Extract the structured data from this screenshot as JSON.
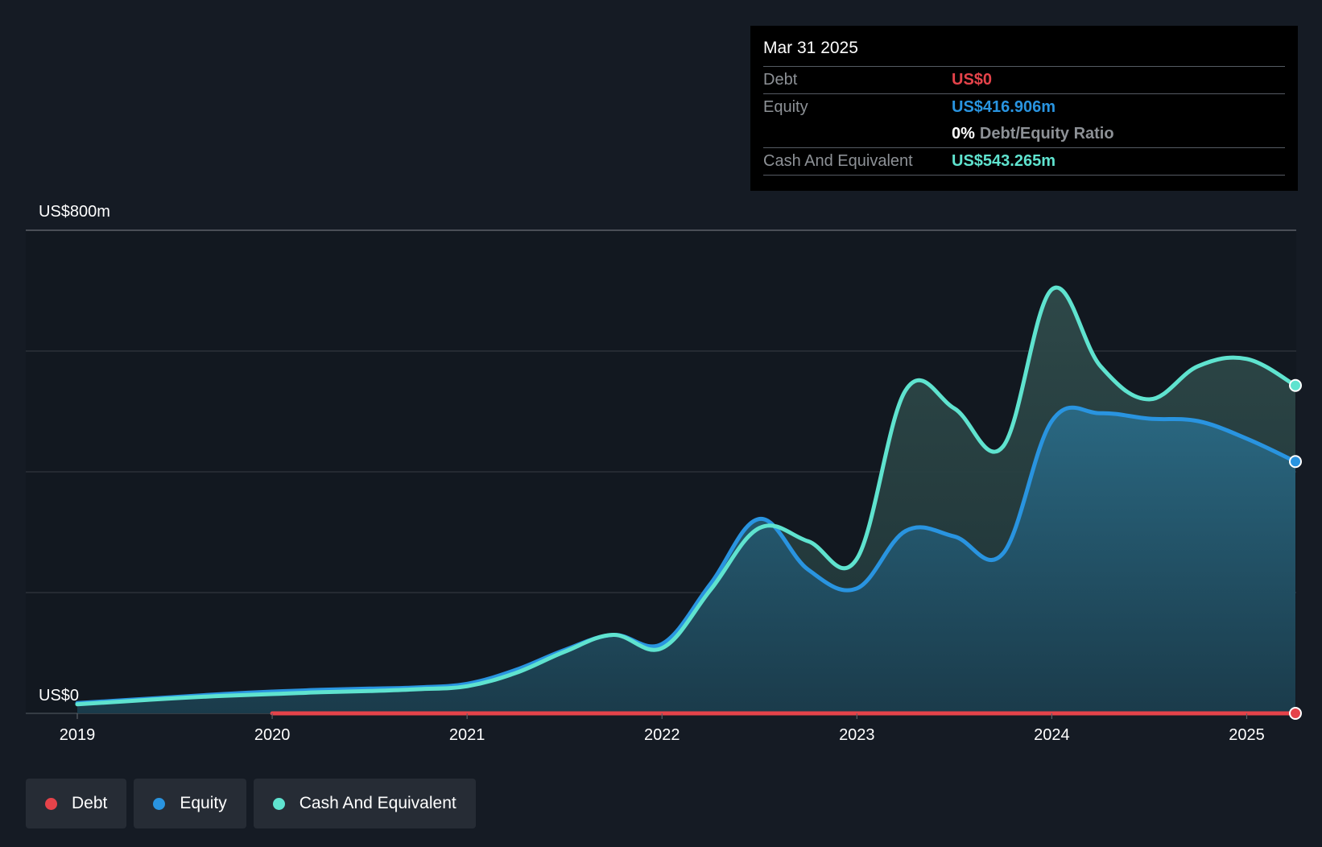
{
  "chart_data": {
    "type": "area",
    "y_top_label": "US$800m",
    "y_bottom_label": "US$0",
    "ylim": [
      0,
      800
    ],
    "xlim": [
      2019,
      2025.25
    ],
    "x_ticks": [
      "2019",
      "2020",
      "2021",
      "2022",
      "2023",
      "2024",
      "2025"
    ],
    "colors": {
      "debt": "#e5434a",
      "equity": "#2994e0",
      "cash": "#5fe3cf"
    },
    "series": [
      {
        "name": "Debt",
        "color": "#e5434a",
        "points": [
          [
            2020.0,
            0
          ],
          [
            2021.0,
            0
          ],
          [
            2022.0,
            0
          ],
          [
            2023.0,
            0
          ],
          [
            2024.0,
            0
          ],
          [
            2025.0,
            0
          ],
          [
            2025.25,
            0
          ]
        ]
      },
      {
        "name": "Equity",
        "color": "#2994e0",
        "points": [
          [
            2019.0,
            17
          ],
          [
            2019.25,
            22
          ],
          [
            2019.5,
            27
          ],
          [
            2019.75,
            32
          ],
          [
            2020.0,
            36
          ],
          [
            2020.25,
            39
          ],
          [
            2020.5,
            41
          ],
          [
            2020.75,
            43
          ],
          [
            2021.0,
            49
          ],
          [
            2021.25,
            72
          ],
          [
            2021.5,
            105
          ],
          [
            2021.75,
            130
          ],
          [
            2022.0,
            115
          ],
          [
            2022.25,
            215
          ],
          [
            2022.5,
            322
          ],
          [
            2022.75,
            238
          ],
          [
            2023.0,
            207
          ],
          [
            2023.25,
            302
          ],
          [
            2023.5,
            293
          ],
          [
            2023.75,
            265
          ],
          [
            2024.0,
            484
          ],
          [
            2024.25,
            497
          ],
          [
            2024.5,
            488
          ],
          [
            2024.75,
            484
          ],
          [
            2025.0,
            455
          ],
          [
            2025.25,
            417
          ]
        ]
      },
      {
        "name": "Cash And Equivalent",
        "color": "#5fe3cf",
        "points": [
          [
            2019.0,
            15
          ],
          [
            2019.25,
            20
          ],
          [
            2019.5,
            25
          ],
          [
            2019.75,
            29
          ],
          [
            2020.0,
            32
          ],
          [
            2020.25,
            35
          ],
          [
            2020.5,
            37
          ],
          [
            2020.75,
            40
          ],
          [
            2021.0,
            45
          ],
          [
            2021.25,
            67
          ],
          [
            2021.5,
            102
          ],
          [
            2021.75,
            130
          ],
          [
            2022.0,
            108
          ],
          [
            2022.25,
            205
          ],
          [
            2022.5,
            307
          ],
          [
            2022.75,
            285
          ],
          [
            2023.0,
            256
          ],
          [
            2023.25,
            535
          ],
          [
            2023.5,
            505
          ],
          [
            2023.75,
            442
          ],
          [
            2024.0,
            702
          ],
          [
            2024.25,
            575
          ],
          [
            2024.5,
            520
          ],
          [
            2024.75,
            575
          ],
          [
            2025.0,
            587
          ],
          [
            2025.25,
            543
          ]
        ]
      }
    ],
    "legend": [
      "Debt",
      "Equity",
      "Cash And Equivalent"
    ]
  },
  "tooltip": {
    "date": "Mar 31 2025",
    "debt_label": "Debt",
    "debt_value": "US$0",
    "equity_label": "Equity",
    "equity_value": "US$416.906m",
    "ratio_value": "0%",
    "ratio_label": "Debt/Equity Ratio",
    "cash_label": "Cash And Equivalent",
    "cash_value": "US$543.265m"
  },
  "legend": {
    "debt": "Debt",
    "equity": "Equity",
    "cash": "Cash And Equivalent"
  }
}
